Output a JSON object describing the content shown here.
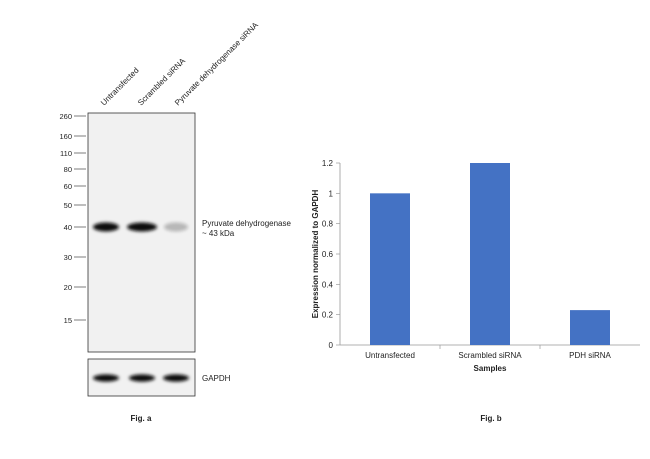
{
  "fig_a": {
    "lane_labels": [
      "Untransfected",
      "Scrambled siRNA",
      "Pyruvate dehydrogenase siRNA"
    ],
    "mw_markers": [
      "260",
      "160",
      "110",
      "80",
      "60",
      "50",
      "40",
      "30",
      "20",
      "15"
    ],
    "band_label_line1": "Pyruvate dehydrogenase",
    "band_label_line2": "~ 43 kDa",
    "loading_control_label": "GAPDH",
    "caption": "Fig. a",
    "band_intensity": [
      1.0,
      1.0,
      0.25
    ],
    "gapdh_intensity": [
      1.0,
      1.0,
      1.0
    ],
    "band_color": "#111111"
  },
  "fig_b": {
    "caption": "Fig. b"
  },
  "chart_data": {
    "type": "bar",
    "categories": [
      "Untransfected",
      "Scrambled siRNA",
      "PDH siRNA"
    ],
    "values": [
      1.0,
      1.2,
      0.23
    ],
    "title": "",
    "xlabel": "Samples",
    "ylabel": "Expression normalized to GAPDH",
    "ylim": [
      0,
      1.2
    ],
    "yticks": [
      "0",
      "0.2",
      "0.4",
      "0.6",
      "0.8",
      "1",
      "1.2"
    ],
    "bar_color": "#4472C4",
    "grid": false,
    "legend": "none"
  }
}
